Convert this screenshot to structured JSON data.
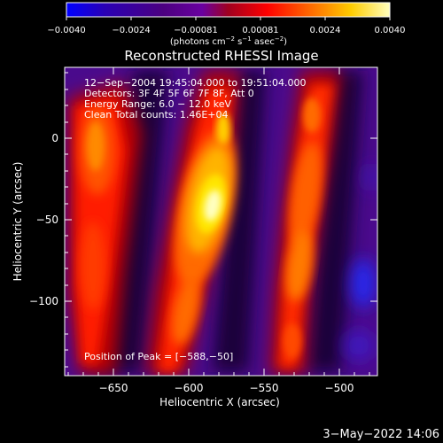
{
  "figure": {
    "colorbar": {
      "tick_labels": [
        "−0.0040",
        "−0.0024",
        "−0.00081",
        "0.00081",
        "0.0024",
        "0.0040"
      ],
      "units_main": "(photons cm",
      "units_sup1": "−2",
      "units_mid1": " s",
      "units_sup2": "−1",
      "units_mid2": " asec",
      "units_sup3": "−2",
      "units_end": ")",
      "colormap": [
        "#0000ff",
        "#2a00b4",
        "#4c0080",
        "#6a00a0",
        "#a00020",
        "#ff0000",
        "#ff6600",
        "#ffcc00",
        "#ffffbe"
      ]
    },
    "title": "Reconstructed RHESSI Image",
    "info_lines": [
      "12−Sep−2004 19:45:04.000 to 19:51:04.000",
      "Detectors: 3F 4F 5F 6F 7F 8F, Att 0",
      "Energy Range: 6.0 − 12.0 keV",
      "Clean    Total counts: 1.46E+04"
    ],
    "peak_label": "Position of Peak = [−588,−50]",
    "xaxis": {
      "label": "Heliocentric X (arcsec)",
      "tick_labels": [
        "−650",
        "−600",
        "−550",
        "−500"
      ]
    },
    "yaxis": {
      "label": "Heliocentric Y (arcsec)",
      "tick_labels": [
        "0",
        "−50",
        "−100"
      ]
    },
    "date_stamp": "3−May−2022 14:06"
  }
}
